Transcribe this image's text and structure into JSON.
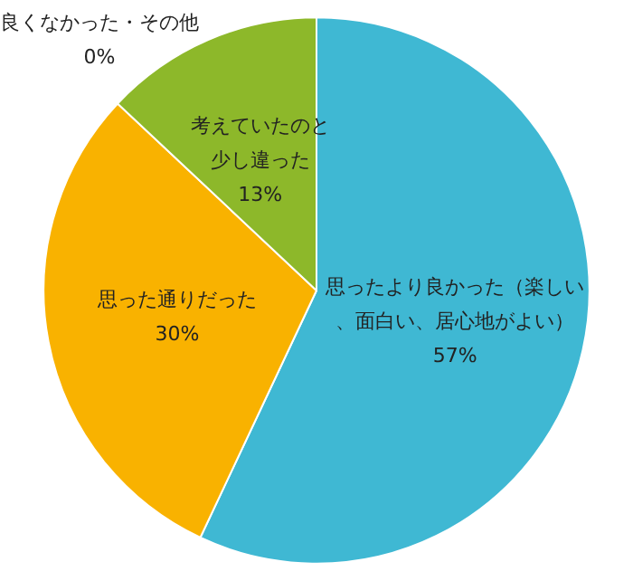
{
  "chart_data": {
    "type": "pie",
    "categories": [
      "思ったより良かった（楽しい、面白い、居心地がよい）",
      "思った通りだった",
      "考えていたのと少し違った",
      "良くなかった・その他"
    ],
    "values": [
      57,
      30,
      13,
      0
    ],
    "value_labels": [
      "57%",
      "30%",
      "13%",
      "0%"
    ],
    "colors": [
      "#3fb8d3",
      "#f9b200",
      "#8db82a",
      "#7f7f7f"
    ],
    "legend": false
  }
}
